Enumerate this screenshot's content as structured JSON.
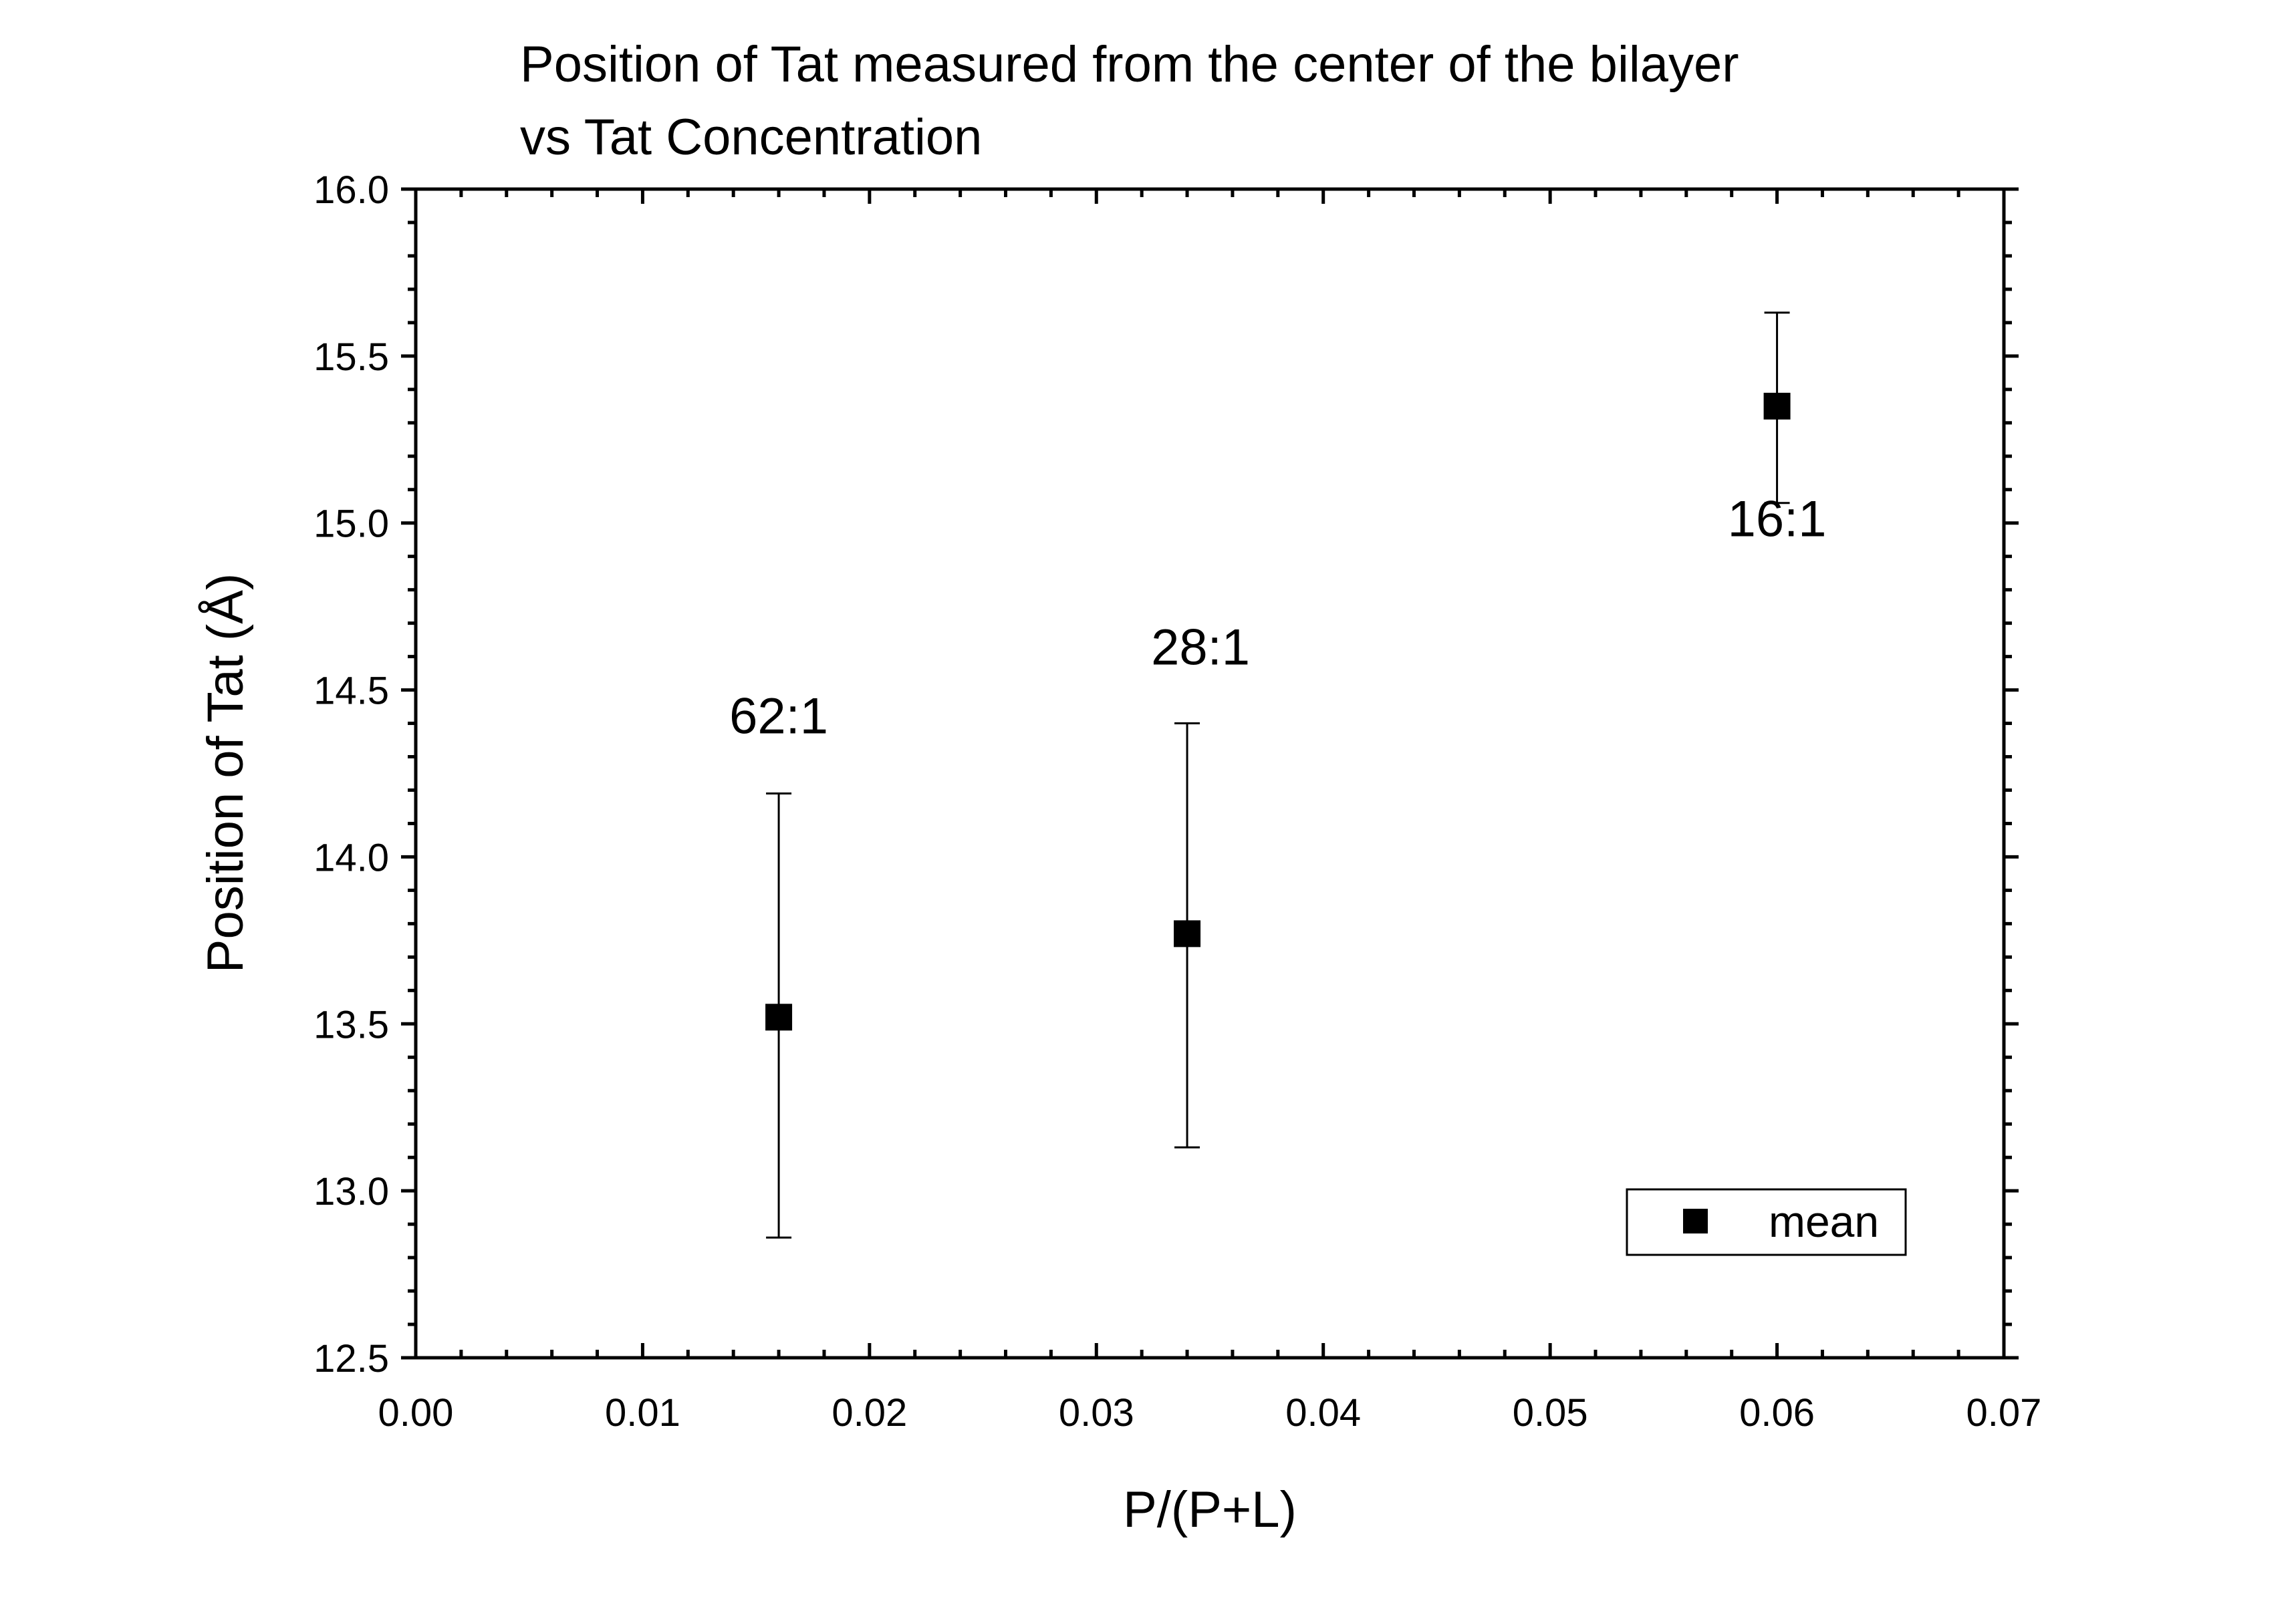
{
  "chart_data": {
    "type": "scatter",
    "title_lines": [
      "Position of Tat measured from the center of the bilayer",
      "vs Tat Concentration"
    ],
    "xlabel": "P/(P+L)",
    "ylabel": "Position of Tat (Å)",
    "xlim": [
      0.0,
      0.07
    ],
    "ylim": [
      12.5,
      16.0
    ],
    "x_ticks": [
      "0.00",
      "0.01",
      "0.02",
      "0.03",
      "0.04",
      "0.05",
      "0.06",
      "0.07"
    ],
    "y_ticks": [
      "12.5",
      "13.0",
      "13.5",
      "14.0",
      "14.5",
      "15.0",
      "15.5",
      "16.0"
    ],
    "series": [
      {
        "name": "mean",
        "marker": "filled-square",
        "color": "#000000",
        "points": [
          {
            "x": 0.016,
            "y": 13.52,
            "err_low": 12.86,
            "err_high": 14.19,
            "label": "62:1"
          },
          {
            "x": 0.034,
            "y": 13.77,
            "err_low": 13.13,
            "err_high": 14.4,
            "label": "28:1"
          },
          {
            "x": 0.06,
            "y": 15.35,
            "err_low": 15.06,
            "err_high": 15.63,
            "label": "16:1"
          }
        ]
      }
    ],
    "grid": false,
    "legend_position": "bottom-right"
  }
}
